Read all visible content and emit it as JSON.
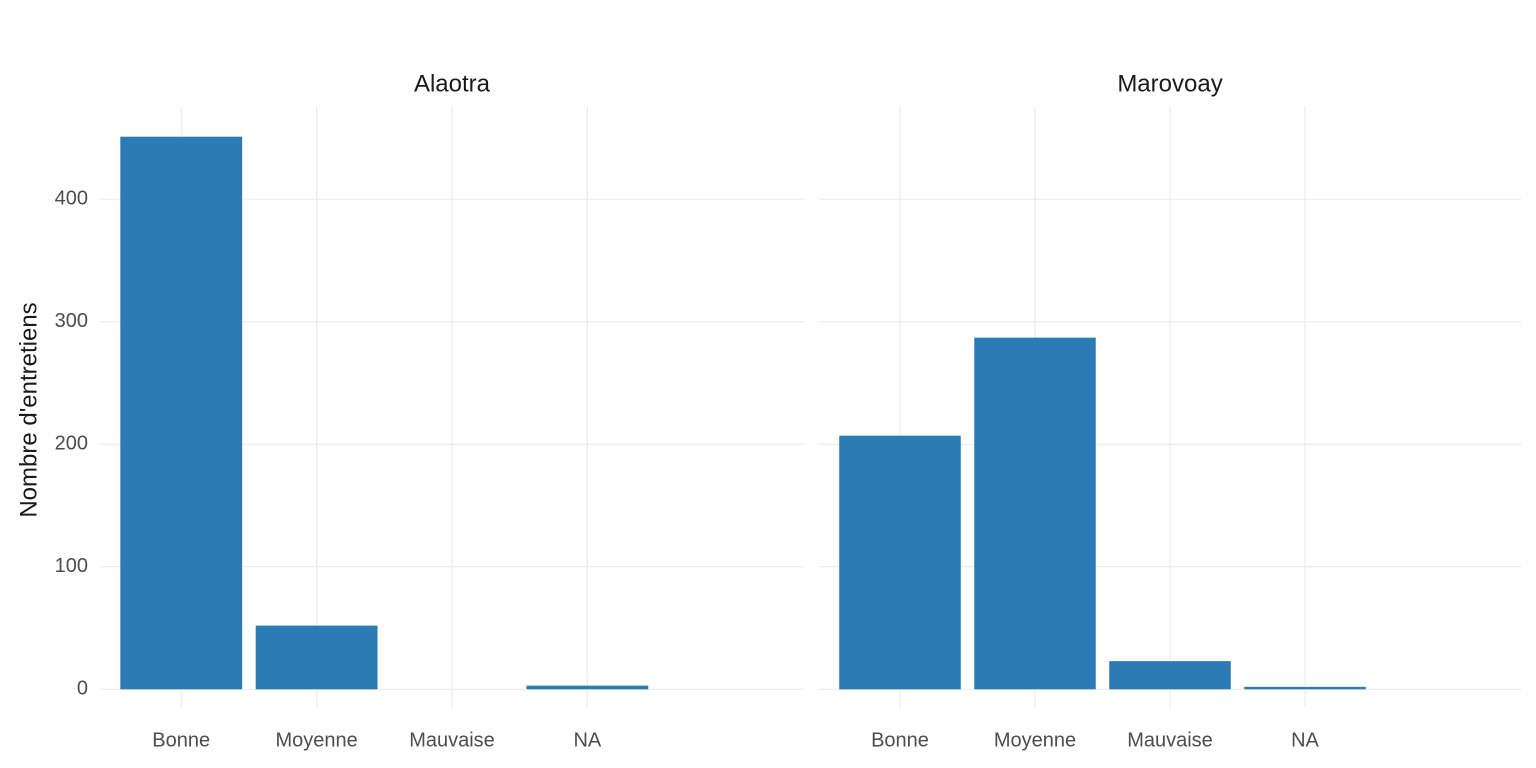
{
  "chart_data": [
    {
      "type": "bar",
      "title": "Alaotra",
      "ylabel": "Nombre d'entretiens",
      "categories": [
        "Bonne",
        "Moyenne",
        "Mauvaise",
        "NA"
      ],
      "values": [
        451,
        52,
        0,
        3
      ],
      "color": "#2c7bb6",
      "ylim": [
        -22.6,
        473.6
      ],
      "yticks": [
        0,
        100,
        200,
        300,
        400
      ],
      "grid": true
    },
    {
      "type": "bar",
      "title": "Marovoay",
      "categories": [
        "Bonne",
        "Moyenne",
        "Mauvaise",
        "NA"
      ],
      "values": [
        207,
        287,
        23,
        2
      ],
      "color": "#2c7bb6",
      "ylim": [
        -22.6,
        473.6
      ],
      "yticks": [
        0,
        100,
        200,
        300,
        400
      ],
      "grid": true
    }
  ]
}
